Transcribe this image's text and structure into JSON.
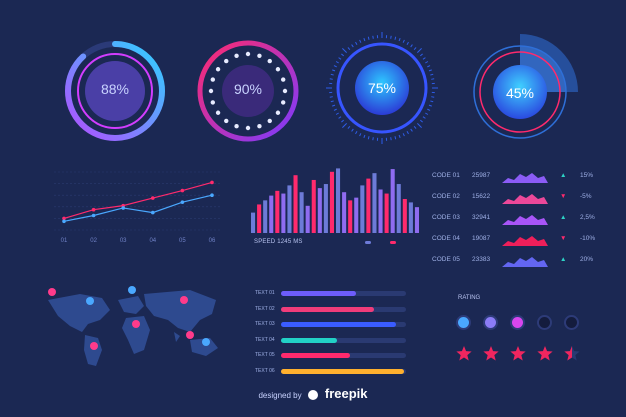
{
  "gauges": [
    {
      "label": "88%",
      "value": 88
    },
    {
      "label": "90%",
      "value": 90
    },
    {
      "label": "75%",
      "value": 75
    },
    {
      "label": "45%",
      "value": 45
    }
  ],
  "line_chart": {
    "chart_data": {
      "type": "line",
      "categories": [
        "01",
        "02",
        "03",
        "04",
        "05",
        "06"
      ],
      "series": [
        {
          "values": [
            20,
            35,
            42,
            55,
            68,
            82
          ]
        },
        {
          "values": [
            15,
            25,
            38,
            30,
            48,
            60
          ]
        }
      ],
      "ylim": [
        0,
        100
      ]
    }
  },
  "bar_chart": {
    "caption": "SPEED 1245  MS",
    "chart_data": {
      "type": "bar",
      "values": [
        30,
        42,
        48,
        55,
        62,
        58,
        70,
        85,
        60,
        40,
        78,
        66,
        72,
        90,
        95,
        60,
        48,
        52,
        70,
        80,
        88,
        64,
        58,
        94,
        72,
        50,
        45,
        38
      ],
      "ylim": [
        0,
        100
      ]
    }
  },
  "codes": [
    {
      "code": "CODE 01",
      "value": "25987",
      "pct": "15%",
      "dir": "up",
      "color": "#8b5cf6"
    },
    {
      "code": "CODE 02",
      "value": "15622",
      "pct": "-5%",
      "dir": "down",
      "color": "#ec4899"
    },
    {
      "code": "CODE 03",
      "value": "32941",
      "pct": "2,5%",
      "dir": "up",
      "color": "#a855f7"
    },
    {
      "code": "CODE 04",
      "value": "19087",
      "pct": "-10%",
      "dir": "down",
      "color": "#ef1f5a"
    },
    {
      "code": "CODE 05",
      "value": "23383",
      "pct": "20%",
      "dir": "up",
      "color": "#6366f1"
    }
  ],
  "text_bars": [
    {
      "label": "TEXT 01",
      "value": 0.6,
      "color": "#6d5dfc"
    },
    {
      "label": "TEXT 02",
      "value": 0.74,
      "color": "#f03c7a"
    },
    {
      "label": "TEXT 03",
      "value": 0.92,
      "color": "#3a5cff"
    },
    {
      "label": "TEXT 04",
      "value": 0.45,
      "color": "#22d1c6"
    },
    {
      "label": "TEXT 05",
      "value": 0.55,
      "color": "#ff2a6d"
    },
    {
      "label": "TEXT 06",
      "value": 0.98,
      "color": "#ffb02e"
    }
  ],
  "rating": {
    "title": "RATING",
    "dots": [
      "#4aa8ff",
      "#8b7cf6",
      "#d946ef",
      "#141c3d",
      "#141c3d"
    ],
    "stars": 4.5,
    "star_color": "#f0265f"
  },
  "footer": {
    "text": "freepik"
  }
}
